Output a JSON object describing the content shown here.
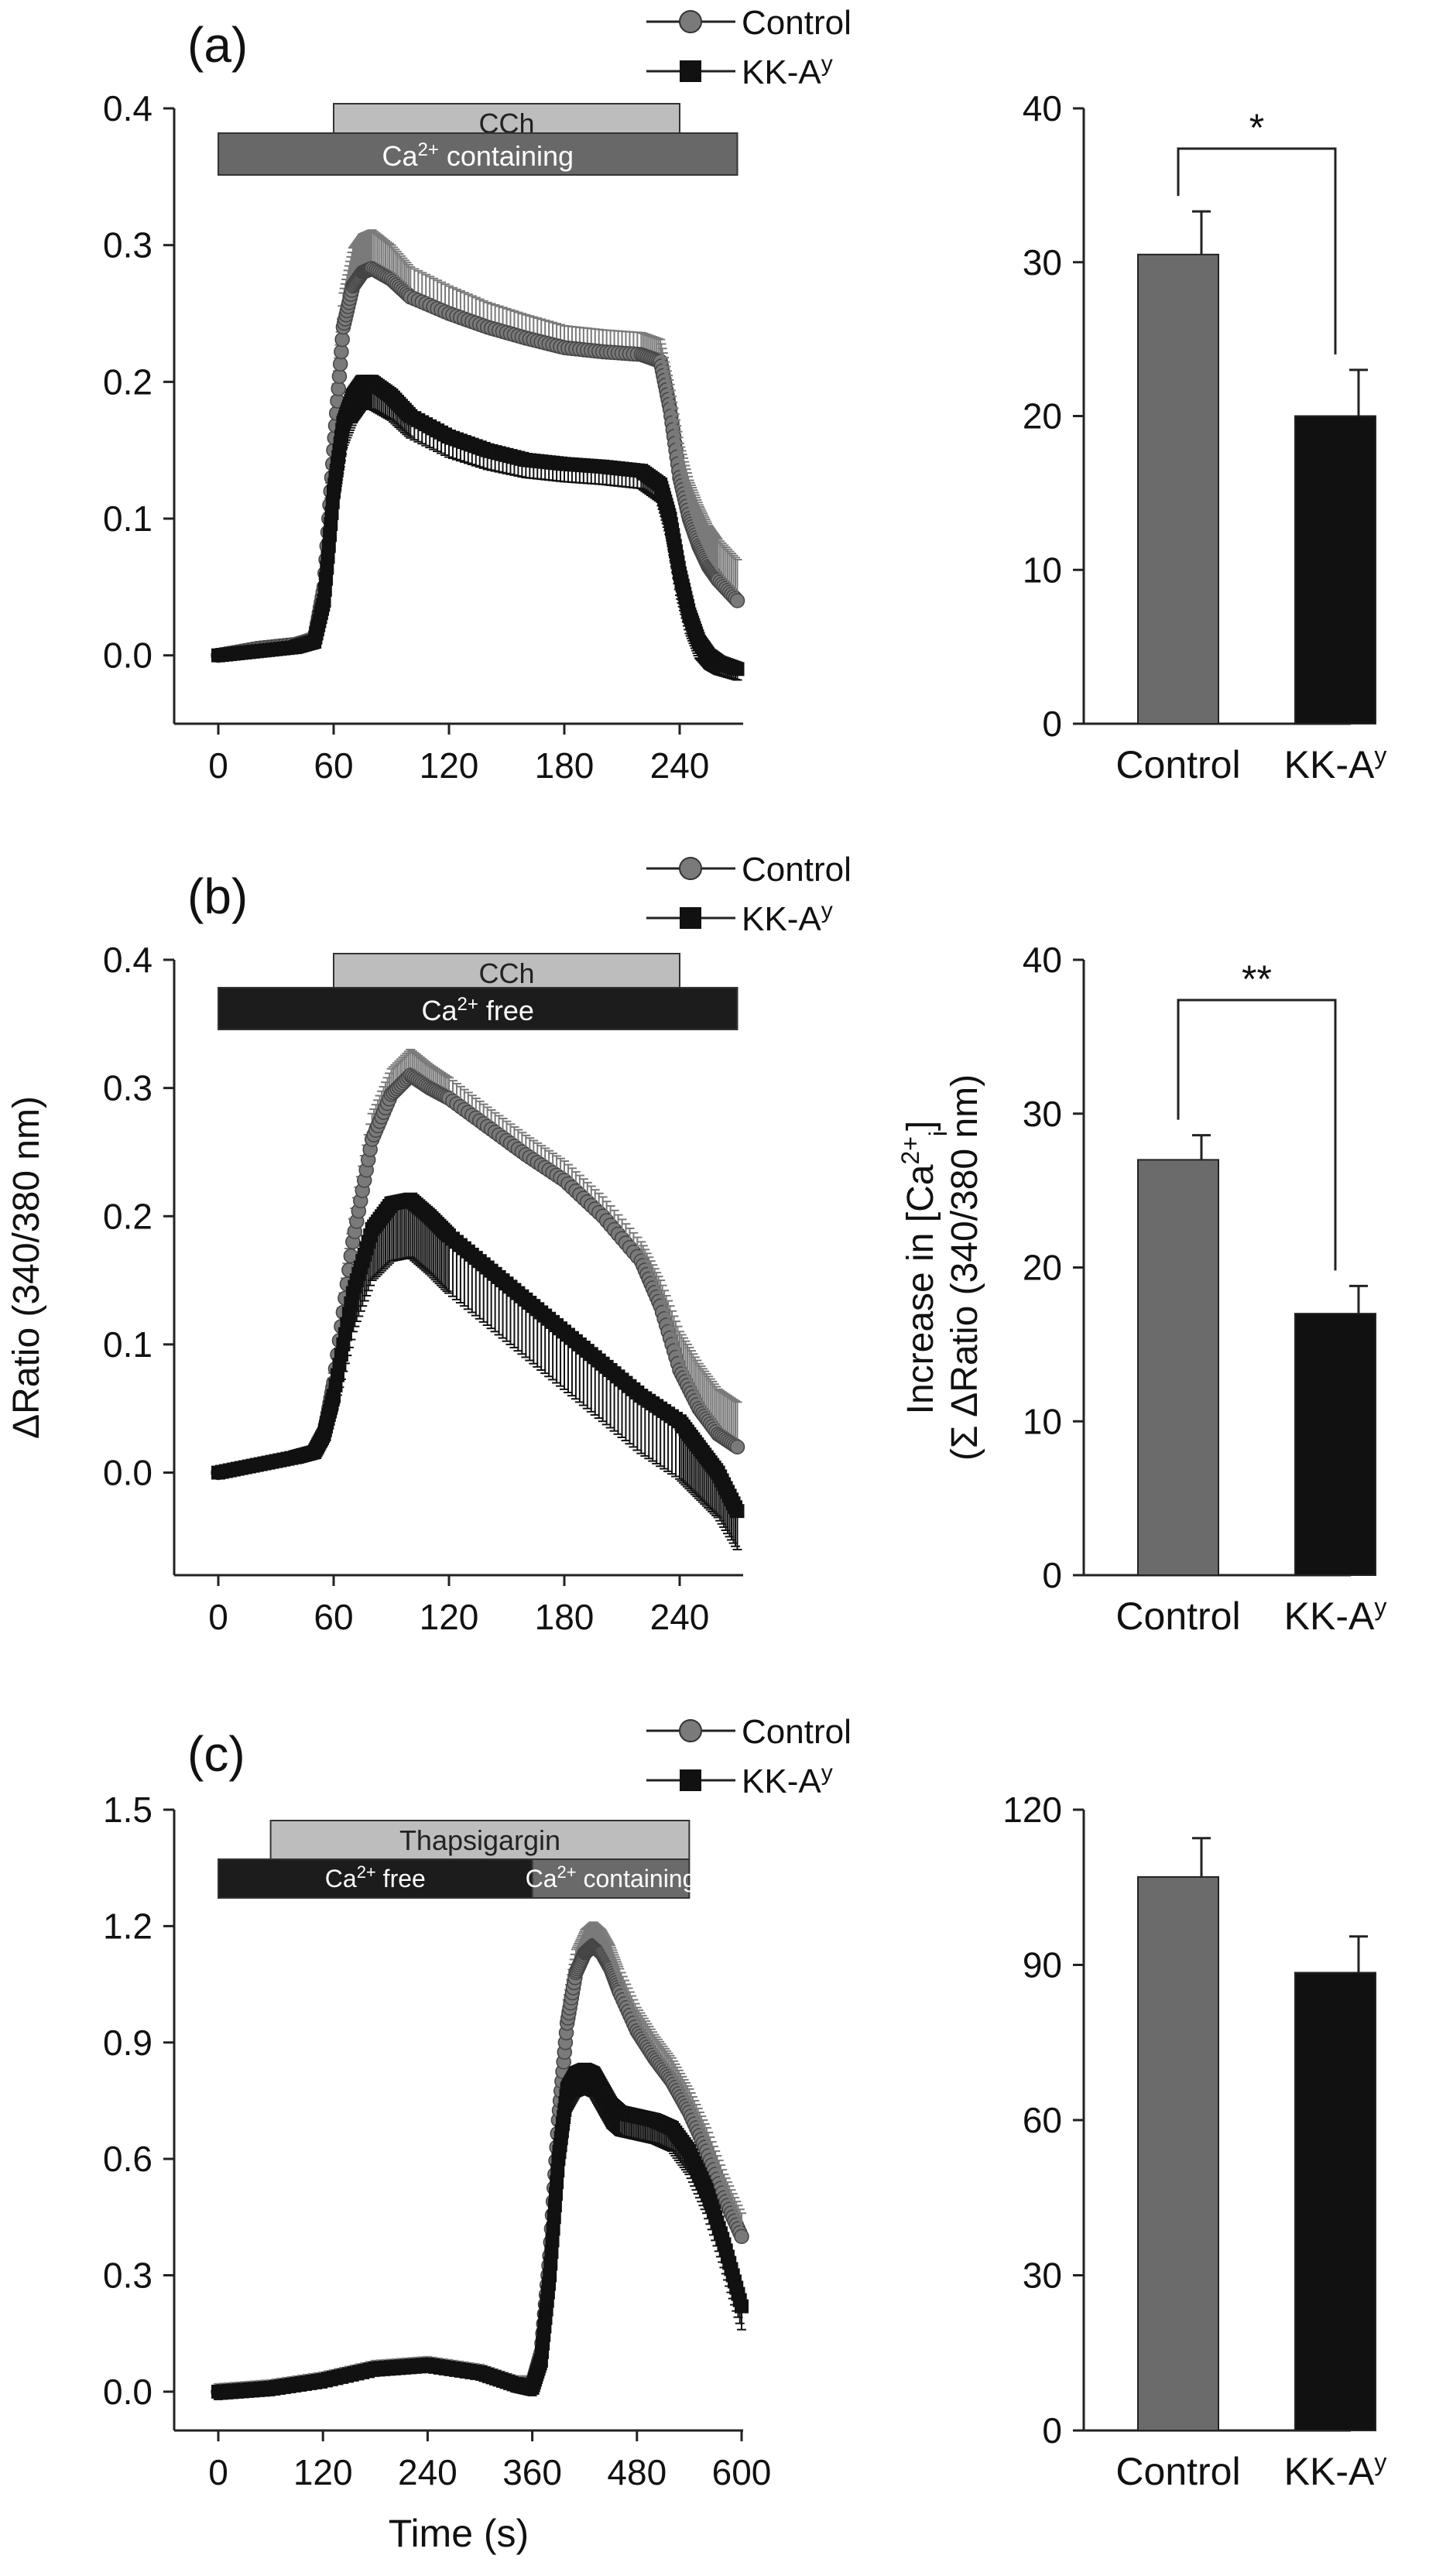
{
  "panels": [
    {
      "label": "(a)",
      "legend": [
        {
          "name": "Control",
          "marker": "circle"
        },
        {
          "name": "KK-A",
          "sup": "y",
          "marker": "square"
        }
      ],
      "bars": [
        {
          "text": "CCh",
          "sup": "",
          "suffix": "",
          "color": "#bdbdbd",
          "t0": 60,
          "t1": 240
        },
        {
          "text": "Ca",
          "sup": "2+",
          "suffix": " containing",
          "color": "#686868",
          "t0": 0,
          "t1": 270
        }
      ],
      "bars_extra": []
    },
    {
      "label": "(b)",
      "legend": [
        {
          "name": "Control",
          "marker": "circle"
        },
        {
          "name": "KK-A",
          "sup": "y",
          "marker": "square"
        }
      ],
      "bars": [
        {
          "text": "CCh",
          "sup": "",
          "suffix": "",
          "color": "#bdbdbd",
          "t0": 60,
          "t1": 240
        },
        {
          "text": "Ca",
          "sup": "2+",
          "suffix": " free",
          "color": "#1c1c1c",
          "t0": 0,
          "t1": 270
        }
      ],
      "bars_extra": []
    },
    {
      "label": "(c)",
      "legend": [
        {
          "name": "Control",
          "marker": "circle"
        },
        {
          "name": "KK-A",
          "sup": "y",
          "marker": "square"
        }
      ],
      "bars": [
        {
          "text": "Thapsigargin",
          "sup": "",
          "suffix": "",
          "color": "#bdbdbd",
          "t0": 60,
          "t1": 540
        }
      ],
      "bars_extra": [
        {
          "text": "Ca",
          "sup": "2+",
          "suffix": " free",
          "color": "#1c1c1c",
          "t0": 0,
          "t1": 360
        },
        {
          "text": "Ca",
          "sup": "2+",
          "suffix": " containing",
          "color": "#6a6a6a",
          "t0": 360,
          "t1": 540
        }
      ]
    }
  ],
  "chart_data": [
    {
      "id": "a-trace",
      "type": "line",
      "xlabel": "",
      "ylabel": "",
      "xticks": [
        0,
        60,
        120,
        180,
        240
      ],
      "yticks": [
        0.0,
        0.1,
        0.2,
        0.3,
        0.4
      ],
      "ytick_labels": [
        "0.0",
        "0.1",
        "0.2",
        "0.3",
        "0.4"
      ],
      "xlim": [
        -12,
        270
      ],
      "ylim": [
        -0.05,
        0.4
      ],
      "series": [
        {
          "name": "Control",
          "color": "#7a7a7a",
          "marker": "circle",
          "x": [
            0,
            20,
            40,
            50,
            55,
            60,
            65,
            70,
            75,
            80,
            90,
            100,
            120,
            140,
            160,
            180,
            200,
            220,
            230,
            235,
            240,
            245,
            250,
            255,
            260,
            270
          ],
          "y": [
            0.0,
            0.005,
            0.008,
            0.012,
            0.05,
            0.15,
            0.24,
            0.27,
            0.28,
            0.283,
            0.275,
            0.262,
            0.25,
            0.24,
            0.232,
            0.225,
            0.222,
            0.22,
            0.215,
            0.18,
            0.13,
            0.1,
            0.08,
            0.065,
            0.055,
            0.04
          ],
          "err": [
            0.004,
            0.004,
            0.004,
            0.005,
            0.01,
            0.02,
            0.025,
            0.028,
            0.028,
            0.028,
            0.025,
            0.022,
            0.02,
            0.018,
            0.017,
            0.016,
            0.016,
            0.016,
            0.016,
            0.018,
            0.025,
            0.028,
            0.03,
            0.03,
            0.03,
            0.03
          ]
        },
        {
          "name": "KK-A",
          "sup": "y",
          "color": "#111111",
          "marker": "square",
          "x": [
            0,
            20,
            40,
            50,
            55,
            60,
            65,
            70,
            75,
            80,
            90,
            100,
            120,
            140,
            160,
            180,
            200,
            220,
            230,
            235,
            240,
            245,
            250,
            255,
            260,
            270
          ],
          "y": [
            0.0,
            0.003,
            0.006,
            0.01,
            0.04,
            0.12,
            0.17,
            0.19,
            0.2,
            0.2,
            0.19,
            0.175,
            0.16,
            0.15,
            0.143,
            0.14,
            0.138,
            0.135,
            0.125,
            0.1,
            0.06,
            0.03,
            0.01,
            0.0,
            -0.005,
            -0.01
          ],
          "err": [
            0.004,
            0.004,
            0.004,
            0.005,
            0.008,
            0.015,
            0.018,
            0.02,
            0.02,
            0.02,
            0.018,
            0.016,
            0.015,
            0.014,
            0.013,
            0.013,
            0.013,
            0.013,
            0.013,
            0.014,
            0.016,
            0.014,
            0.012,
            0.01,
            0.009,
            0.008
          ]
        }
      ]
    },
    {
      "id": "a-summary",
      "type": "bar",
      "categories": [
        "Control",
        "KK-A"
      ],
      "category_sups": [
        "",
        "y"
      ],
      "values": [
        30.5,
        20.0
      ],
      "errors": [
        2.8,
        3.0
      ],
      "colors": [
        "#6b6b6b",
        "#111111"
      ],
      "yticks": [
        0,
        10,
        20,
        30,
        40
      ],
      "ylim": [
        0,
        40
      ],
      "significance": "*",
      "ylabel": "",
      "ylabel_sub": ""
    },
    {
      "id": "b-trace",
      "type": "line",
      "xlabel": "",
      "ylabel": "ΔRatio (340/380 nm)",
      "xticks": [
        0,
        60,
        120,
        180,
        240
      ],
      "yticks": [
        0.0,
        0.1,
        0.2,
        0.3,
        0.4
      ],
      "ytick_labels": [
        "0.0",
        "0.1",
        "0.2",
        "0.3",
        "0.4"
      ],
      "xlim": [
        -12,
        270
      ],
      "ylim": [
        -0.08,
        0.4
      ],
      "series": [
        {
          "name": "Control",
          "color": "#7a7a7a",
          "marker": "circle",
          "x": [
            0,
            20,
            40,
            50,
            55,
            60,
            70,
            80,
            90,
            100,
            110,
            120,
            140,
            160,
            180,
            200,
            220,
            230,
            240,
            250,
            260,
            270
          ],
          "y": [
            0.0,
            0.006,
            0.012,
            0.016,
            0.03,
            0.07,
            0.18,
            0.26,
            0.295,
            0.31,
            0.3,
            0.292,
            0.27,
            0.248,
            0.228,
            0.2,
            0.165,
            0.13,
            0.08,
            0.05,
            0.03,
            0.02
          ],
          "err": [
            0.004,
            0.004,
            0.004,
            0.005,
            0.008,
            0.012,
            0.018,
            0.02,
            0.02,
            0.02,
            0.018,
            0.016,
            0.015,
            0.015,
            0.015,
            0.015,
            0.015,
            0.02,
            0.03,
            0.035,
            0.035,
            0.035
          ]
        },
        {
          "name": "KK-A",
          "sup": "y",
          "color": "#111111",
          "marker": "square",
          "x": [
            0,
            20,
            40,
            50,
            55,
            60,
            70,
            80,
            90,
            100,
            110,
            120,
            140,
            160,
            180,
            200,
            220,
            240,
            250,
            260,
            270
          ],
          "y": [
            0.0,
            0.006,
            0.012,
            0.016,
            0.03,
            0.06,
            0.14,
            0.19,
            0.21,
            0.213,
            0.2,
            0.185,
            0.16,
            0.135,
            0.11,
            0.085,
            0.06,
            0.04,
            0.02,
            0.0,
            -0.03
          ],
          "err": [
            0.004,
            0.004,
            0.004,
            0.005,
            0.008,
            0.012,
            0.03,
            0.04,
            0.045,
            0.045,
            0.045,
            0.045,
            0.045,
            0.045,
            0.045,
            0.045,
            0.045,
            0.045,
            0.04,
            0.035,
            0.03
          ]
        }
      ]
    },
    {
      "id": "b-summary",
      "type": "bar",
      "categories": [
        "Control",
        "KK-A"
      ],
      "category_sups": [
        "",
        "y"
      ],
      "values": [
        27.0,
        17.0
      ],
      "errors": [
        1.6,
        1.8
      ],
      "colors": [
        "#6b6b6b",
        "#111111"
      ],
      "yticks": [
        0,
        10,
        20,
        30,
        40
      ],
      "ylim": [
        0,
        40
      ],
      "significance": "**",
      "ylabel": "Increase in [Ca",
      "ylabel_sup": "2+",
      "ylabel_subscript": "i",
      "ylabel_end": "]",
      "ylabel_sub": "(Σ ΔRatio (340/380 nm)"
    },
    {
      "id": "c-trace",
      "type": "line",
      "xlabel": "Time (s)",
      "ylabel": "",
      "xticks": [
        0,
        120,
        240,
        360,
        480,
        600
      ],
      "yticks": [
        0.0,
        0.3,
        0.6,
        0.9,
        1.2,
        1.5
      ],
      "ytick_labels": [
        "0.0",
        "0.3",
        "0.6",
        "0.9",
        "1.2",
        "1.5"
      ],
      "xlim": [
        -24,
        600
      ],
      "ylim": [
        -0.1,
        1.5
      ],
      "series": [
        {
          "name": "Control",
          "color": "#7a7a7a",
          "marker": "circle",
          "x": [
            0,
            60,
            120,
            180,
            240,
            300,
            340,
            360,
            370,
            380,
            390,
            400,
            410,
            420,
            430,
            440,
            450,
            460,
            480,
            500,
            520,
            540,
            560,
            580,
            600
          ],
          "y": [
            0.0,
            0.01,
            0.03,
            0.06,
            0.07,
            0.05,
            0.02,
            0.02,
            0.1,
            0.35,
            0.7,
            0.95,
            1.08,
            1.13,
            1.15,
            1.13,
            1.09,
            1.03,
            0.93,
            0.86,
            0.8,
            0.72,
            0.62,
            0.5,
            0.4
          ],
          "err": [
            0.02,
            0.02,
            0.02,
            0.02,
            0.02,
            0.02,
            0.02,
            0.02,
            0.03,
            0.04,
            0.05,
            0.06,
            0.06,
            0.06,
            0.06,
            0.06,
            0.06,
            0.06,
            0.06,
            0.06,
            0.06,
            0.06,
            0.06,
            0.06,
            0.06
          ]
        },
        {
          "name": "KK-A",
          "sup": "y",
          "color": "#111111",
          "marker": "square",
          "x": [
            0,
            60,
            120,
            180,
            240,
            300,
            340,
            360,
            370,
            380,
            390,
            400,
            410,
            420,
            430,
            440,
            450,
            460,
            480,
            500,
            520,
            540,
            560,
            580,
            600
          ],
          "y": [
            0.0,
            0.01,
            0.03,
            0.06,
            0.07,
            0.05,
            0.02,
            0.01,
            0.08,
            0.3,
            0.6,
            0.78,
            0.82,
            0.83,
            0.82,
            0.78,
            0.74,
            0.72,
            0.71,
            0.7,
            0.68,
            0.62,
            0.52,
            0.38,
            0.22
          ],
          "err": [
            0.02,
            0.02,
            0.02,
            0.02,
            0.02,
            0.02,
            0.02,
            0.02,
            0.03,
            0.04,
            0.05,
            0.06,
            0.06,
            0.06,
            0.06,
            0.06,
            0.06,
            0.06,
            0.06,
            0.06,
            0.06,
            0.06,
            0.06,
            0.06,
            0.06
          ]
        }
      ]
    },
    {
      "id": "c-summary",
      "type": "bar",
      "categories": [
        "Control",
        "KK-A"
      ],
      "category_sups": [
        "",
        "y"
      ],
      "values": [
        107,
        88.5
      ],
      "errors": [
        7.5,
        7.0
      ],
      "colors": [
        "#6b6b6b",
        "#111111"
      ],
      "yticks": [
        0,
        30,
        60,
        90,
        120
      ],
      "ylim": [
        0,
        120
      ],
      "significance": "",
      "ylabel": "",
      "ylabel_sub": ""
    }
  ]
}
